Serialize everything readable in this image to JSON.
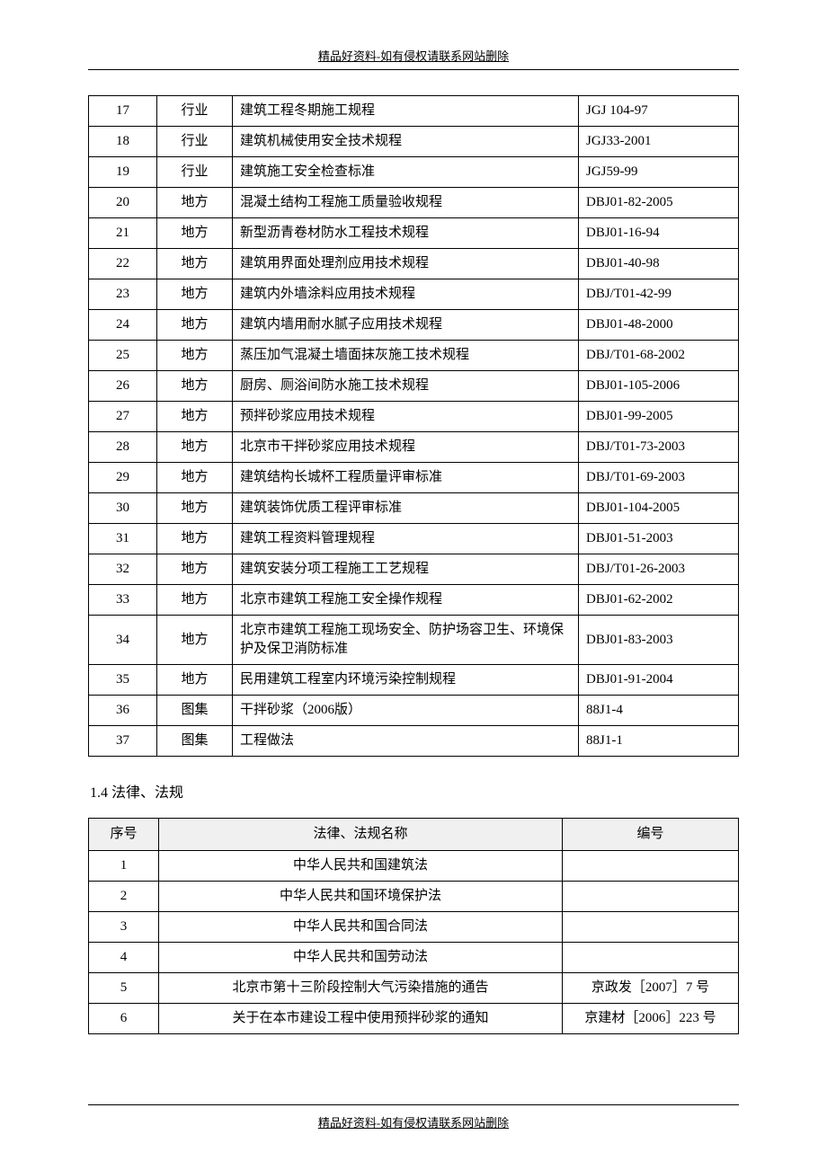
{
  "header_text": "精品好资料-如有侵权请联系网站删除",
  "footer_text": "精品好资料-如有侵权请联系网站删除",
  "table1": {
    "col_widths": {
      "num": 76,
      "type": 84,
      "code": 178
    },
    "border_color": "#000000",
    "font_size": 15,
    "rows": [
      {
        "num": "17",
        "type": "行业",
        "name": "建筑工程冬期施工规程",
        "code": "JGJ 104-97"
      },
      {
        "num": "18",
        "type": "行业",
        "name": "建筑机械使用安全技术规程",
        "code": "JGJ33-2001"
      },
      {
        "num": "19",
        "type": "行业",
        "name": "建筑施工安全检查标准",
        "code": "JGJ59-99"
      },
      {
        "num": "20",
        "type": "地方",
        "name": "混凝土结构工程施工质量验收规程",
        "code": "DBJ01-82-2005"
      },
      {
        "num": "21",
        "type": "地方",
        "name": "新型沥青卷材防水工程技术规程",
        "code": "DBJ01-16-94"
      },
      {
        "num": "22",
        "type": "地方",
        "name": "建筑用界面处理剂应用技术规程",
        "code": "DBJ01-40-98"
      },
      {
        "num": "23",
        "type": "地方",
        "name": "建筑内外墙涂料应用技术规程",
        "code": "DBJ/T01-42-99"
      },
      {
        "num": "24",
        "type": "地方",
        "name": "建筑内墙用耐水腻子应用技术规程",
        "code": "DBJ01-48-2000"
      },
      {
        "num": "25",
        "type": "地方",
        "name": "蒸压加气混凝土墙面抹灰施工技术规程",
        "code": "DBJ/T01-68-2002"
      },
      {
        "num": "26",
        "type": "地方",
        "name": "厨房、厕浴间防水施工技术规程",
        "code": "DBJ01-105-2006"
      },
      {
        "num": "27",
        "type": "地方",
        "name": "预拌砂浆应用技术规程",
        "code": "DBJ01-99-2005"
      },
      {
        "num": "28",
        "type": "地方",
        "name": "北京市干拌砂浆应用技术规程",
        "code": "DBJ/T01-73-2003"
      },
      {
        "num": "29",
        "type": "地方",
        "name": "建筑结构长城杯工程质量评审标准",
        "code": "DBJ/T01-69-2003"
      },
      {
        "num": "30",
        "type": "地方",
        "name": "建筑装饰优质工程评审标准",
        "code": "DBJ01-104-2005"
      },
      {
        "num": "31",
        "type": "地方",
        "name": "建筑工程资料管理规程",
        "code": "DBJ01-51-2003"
      },
      {
        "num": "32",
        "type": "地方",
        "name": "建筑安装分项工程施工工艺规程",
        "code": "DBJ/T01-26-2003"
      },
      {
        "num": "33",
        "type": "地方",
        "name": "北京市建筑工程施工安全操作规程",
        "code": "DBJ01-62-2002"
      },
      {
        "num": "34",
        "type": "地方",
        "name": "北京市建筑工程施工现场安全、防护场容卫生、环境保护及保卫消防标准",
        "code": "DBJ01-83-2003"
      },
      {
        "num": "35",
        "type": "地方",
        "name": "民用建筑工程室内环境污染控制规程",
        "code": "DBJ01-91-2004"
      },
      {
        "num": "36",
        "type": "图集",
        "name": "干拌砂浆（2006版）",
        "code": "88J1-4"
      },
      {
        "num": "37",
        "type": "图集",
        "name": "工程做法",
        "code": "88J1-1"
      }
    ]
  },
  "section_title": "1.4 法律、法规",
  "table2": {
    "header_bg": "#f0f0f0",
    "columns": {
      "num": "序号",
      "name": "法律、法规名称",
      "code": "编号"
    },
    "rows": [
      {
        "num": "1",
        "name": "中华人民共和国建筑法",
        "code": ""
      },
      {
        "num": "2",
        "name": "中华人民共和国环境保护法",
        "code": ""
      },
      {
        "num": "3",
        "name": "中华人民共和国合同法",
        "code": ""
      },
      {
        "num": "4",
        "name": "中华人民共和国劳动法",
        "code": ""
      },
      {
        "num": "5",
        "name": "北京市第十三阶段控制大气污染措施的通告",
        "code": "京政发［2007］7 号"
      },
      {
        "num": "6",
        "name": "关于在本市建设工程中使用预拌砂浆的通知",
        "code": "京建材［2006］223 号"
      }
    ]
  }
}
